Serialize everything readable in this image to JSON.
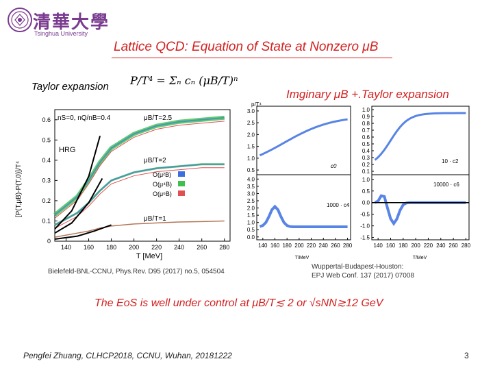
{
  "header": {
    "logo_chinese": "清華大學",
    "logo_english": "Tsinghua University",
    "title": "Lattice QCD: Equation of State at Nonzero μB"
  },
  "left_panel": {
    "label": "Taylor expansion",
    "formula": "P/T⁴ = Σₙ cₙ (μB/T)ⁿ",
    "legend_top": "nS=0, nQ/nB=0.4",
    "curve_labels": [
      "μB/T=2.5",
      "μB/T=2",
      "μB/T=1",
      "HRG"
    ],
    "legend_entries": [
      "O(μ²B)",
      "O(μ⁴B)",
      "O(μ⁶B)"
    ],
    "ylabel": "[P(T,μB)-P(T,0)]/T⁴",
    "xlabel": "T [MeV]",
    "y_ticks": [
      "0",
      "0.1",
      "0.2",
      "0.3",
      "0.4",
      "0.5",
      "0.6"
    ],
    "x_ticks": [
      "140",
      "160",
      "180",
      "200",
      "220",
      "240",
      "260",
      "280"
    ],
    "reference": "Bielefeld-BNL-CCNU, Phys.Rev. D95 (2017) no.5, 054504"
  },
  "right_panel": {
    "title": "Imginary μB +.Taylor expansion",
    "sub_labels": [
      "c0",
      "10 · c2",
      "1000 · c4",
      "10000 · c6"
    ],
    "left_top_y": [
      "0.5",
      "1.0",
      "1.5",
      "2.0",
      "2.5",
      "3.0"
    ],
    "left_top_ylabel": "p/T⁴",
    "right_top_y": [
      "0.1",
      "0.2",
      "0.3",
      "0.4",
      "0.5",
      "0.6",
      "0.7",
      "0.8",
      "0.9",
      "1.0"
    ],
    "left_bot_y": [
      "0.0",
      "0.5",
      "1.0",
      "1.5",
      "2.0",
      "2.5",
      "3.0",
      "3.5",
      "4.0"
    ],
    "right_bot_y": [
      "-1.5",
      "-1.0",
      "-0.5",
      "0.0",
      "0.5",
      "1.0"
    ],
    "x_ticks": [
      "140",
      "160",
      "180",
      "200",
      "220",
      "240",
      "260",
      "280"
    ],
    "xlabel": "T/MeV",
    "reference_1": "Wuppertal-Budapest-Houston:",
    "reference_2": "EPJ Web Conf. 137 (2017) 07008"
  },
  "conclusion": "The EoS is well under control at μB/T≲ 2 or √sNN≳12 GeV",
  "footer": {
    "text": "Pengfei Zhuang, CLHCP2018, CCNU, Wuhan, 20181222",
    "page": "3"
  },
  "colors": {
    "accent_red": "#d42020",
    "logo_purple": "#7a3b8f",
    "series_blue": "#3b6fe0",
    "series_green": "#3fbf4f",
    "series_red": "#e05050"
  },
  "chart_data": [
    {
      "type": "line",
      "title": "",
      "xlabel": "T [MeV]",
      "ylabel": "[P(T,μB)-P(T,0)]/T⁴",
      "xlim": [
        130,
        285
      ],
      "ylim": [
        0,
        0.65
      ],
      "series": [
        {
          "name": "μB/T=2.5",
          "x": [
            130,
            150,
            160,
            170,
            180,
            200,
            220,
            240,
            260,
            280
          ],
          "values": [
            0.13,
            0.22,
            0.3,
            0.39,
            0.46,
            0.53,
            0.57,
            0.59,
            0.6,
            0.61
          ]
        },
        {
          "name": "μB/T=2",
          "x": [
            130,
            150,
            160,
            170,
            180,
            200,
            220,
            240,
            260,
            280
          ],
          "values": [
            0.08,
            0.14,
            0.19,
            0.25,
            0.3,
            0.34,
            0.36,
            0.37,
            0.38,
            0.38
          ]
        },
        {
          "name": "μB/T=1",
          "x": [
            130,
            150,
            160,
            170,
            180,
            200,
            220,
            240,
            260,
            280
          ],
          "values": [
            0.02,
            0.04,
            0.05,
            0.065,
            0.075,
            0.085,
            0.09,
            0.095,
            0.097,
            0.1
          ]
        }
      ]
    }
  ]
}
